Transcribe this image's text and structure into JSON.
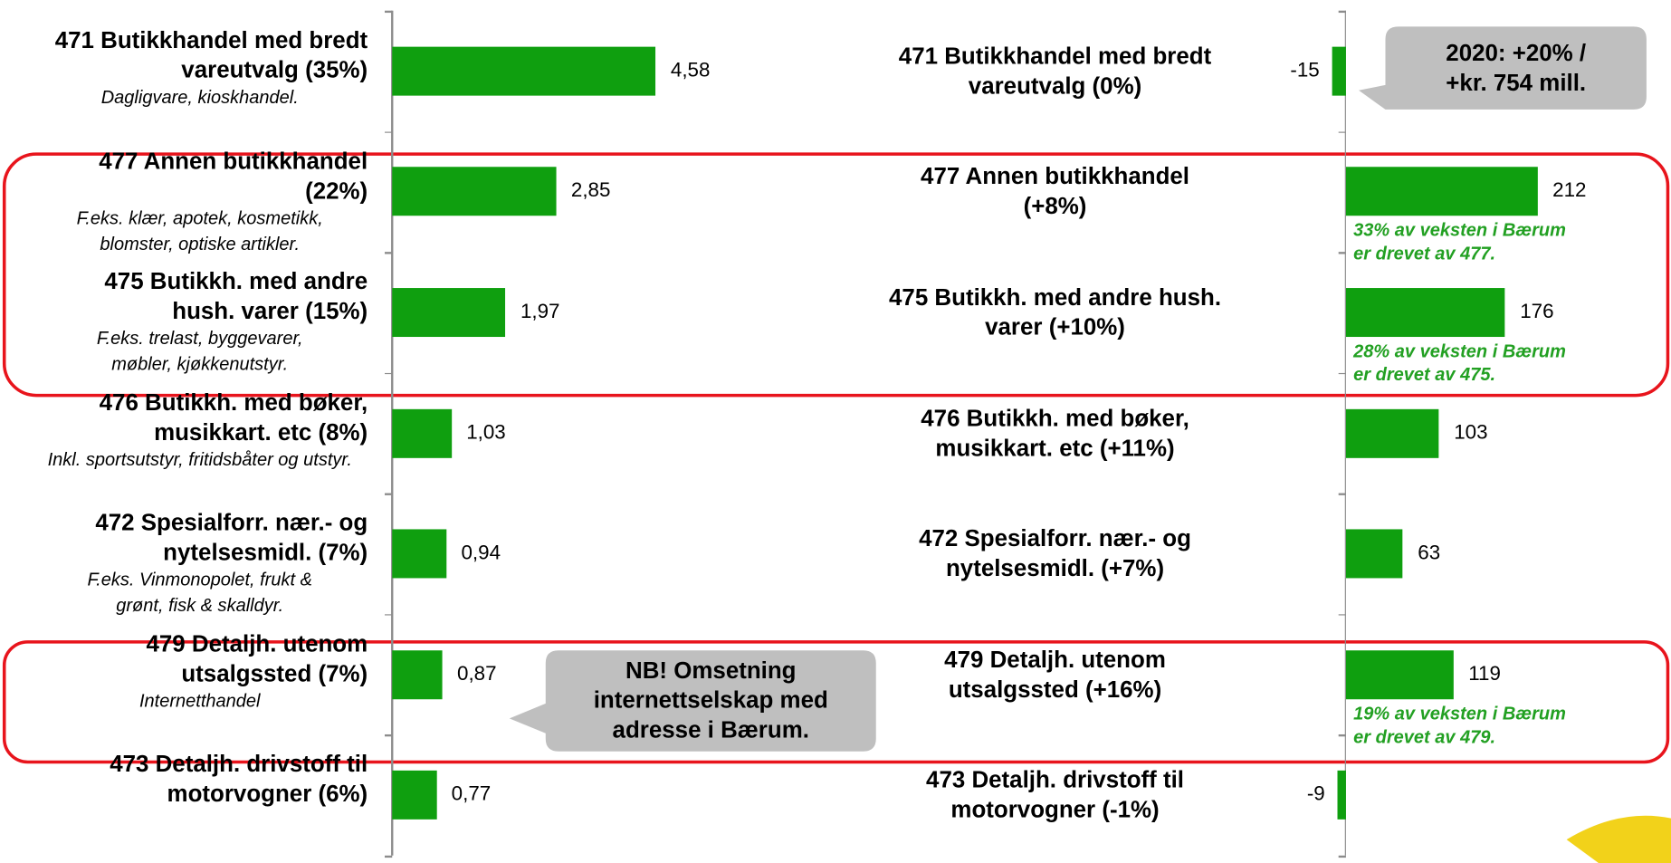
{
  "chart_data": [
    {
      "type": "bar",
      "orientation": "horizontal",
      "categories": [
        "471 Butikkhandel med bredt\nvareutvalg (35%)",
        "477 Annen butikkhandel\n(22%)",
        "475 Butikkh. med andre\nhush. varer (15%)",
        "476 Butikkh. med bøker,\nmusikkart. etc (8%)",
        "472 Spesialforr. nær.- og\nnytelsesmidl. (7%)",
        "479 Detaljh. utenom\nutsalgssted (7%)",
        "473 Detaljh. drivstoff til\nmotorvogner (6%)"
      ],
      "notes": [
        "Dagligvare, kioskhandel.",
        "F.eks. klær, apotek, kosmetikk,\nblomster, optiske artikler.",
        "F.eks. trelast, byggevarer,\nmøbler, kjøkkenutstyr.",
        "Inkl. sportsutstyr, fritidsbåter og utstyr.",
        "F.eks. Vinmonopolet, frukt &\ngrønt, fisk & skalldyr.",
        "Internetthandel",
        null
      ],
      "values": [
        4.58,
        2.85,
        1.97,
        1.03,
        0.94,
        0.87,
        0.77
      ],
      "value_labels": [
        "4,58",
        "2,85",
        "1,97",
        "1,03",
        "0,94",
        "0,87",
        "0,77"
      ],
      "color": "#0f9f0f",
      "xlim": [
        0,
        8
      ],
      "callout": "NB! Omsetning\ninternettselskap med\nadresse i Bærum."
    },
    {
      "type": "bar",
      "orientation": "horizontal",
      "categories": [
        "471 Butikkhandel med bredt\nvareutvalg (0%)",
        "477 Annen butikkhandel\n(+8%)",
        "475 Butikkh. med andre hush.\nvarer (+10%)",
        "476 Butikkh. med bøker,\nmusikkart. etc (+11%)",
        "472 Spesialforr. nær.- og\nnytelsesmidl. (+7%)",
        "479 Detaljh. utenom\nutsalgssted (+16%)",
        "473 Detaljh. drivstoff til\nmotorvogner (-1%)"
      ],
      "notes": [
        null,
        "33% av veksten i Bærum\ner drevet av 477.",
        "28% av veksten i Bærum\ner drevet av 475.",
        null,
        null,
        "19% av veksten i Bærum\ner drevet av 479.",
        null
      ],
      "values": [
        -15,
        212,
        176,
        103,
        63,
        119,
        -9
      ],
      "color": "#0f9f0f",
      "note_color": "#22a022",
      "xlim": [
        -50,
        350
      ],
      "callout": "2020: +20% /\n+kr. 754 mill."
    }
  ]
}
